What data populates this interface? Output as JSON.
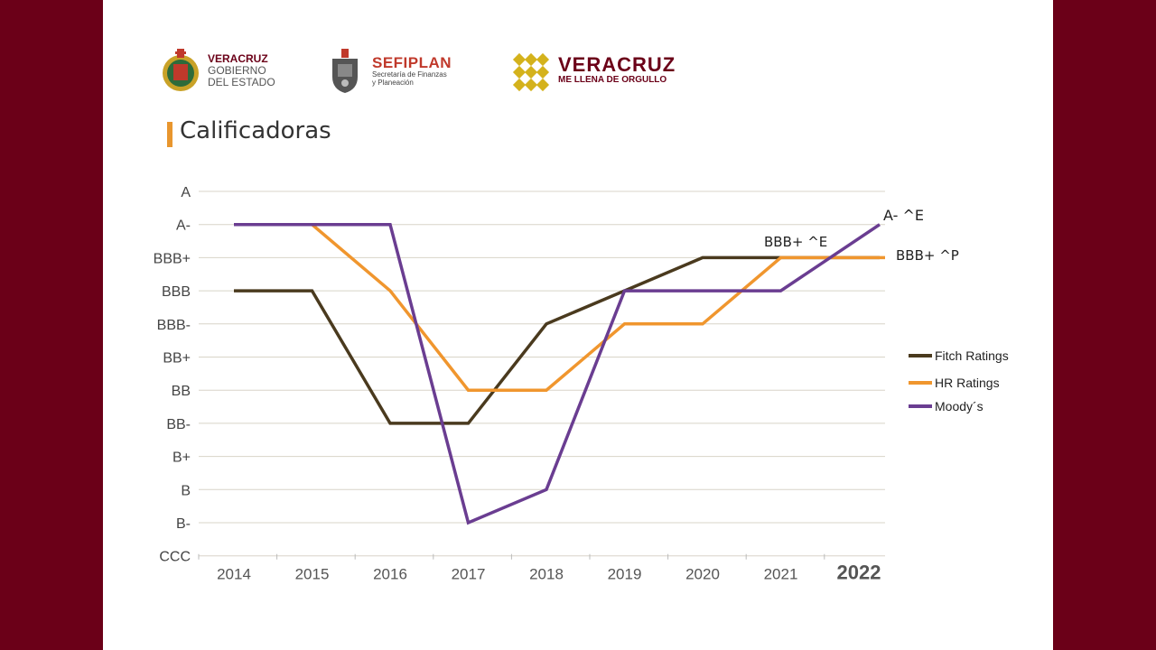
{
  "logos": {
    "gobierno": {
      "line1": "VERACRUZ",
      "line2": "GOBIERNO",
      "line3": "DEL ESTADO"
    },
    "sefiplan": {
      "name": "SEFIPLAN",
      "sub1": "Secretaría de Finanzas",
      "sub2": "y Planeación"
    },
    "veracruz": {
      "name": "VERACRUZ",
      "sub_a": "ME LLENA DE ",
      "sub_b": "ORGULLO"
    }
  },
  "title": "Calificadoras",
  "colors": {
    "background": "#6b0018",
    "accent": "#e8962e",
    "fitch": "#4a3a1e",
    "hr": "#f0962e",
    "moodys": "#6a3d91"
  },
  "chart_data": {
    "type": "line",
    "categories": [
      "2014",
      "2015",
      "2016",
      "2017",
      "2018",
      "2019",
      "2020",
      "2021",
      "2022"
    ],
    "y_categories": [
      "CCC",
      "B-",
      "B",
      "B+",
      "BB-",
      "BB",
      "BB+",
      "BBB-",
      "BBB",
      "BBB+",
      "A-",
      "A"
    ],
    "series": [
      {
        "name": "Fitch Ratings",
        "values": [
          "BBB",
          "BBB",
          "BB-",
          "BB-",
          "BBB-",
          "BBB",
          "BBB+",
          "BBB+",
          "BBB+"
        ]
      },
      {
        "name": "HR Ratings",
        "values": [
          "A-",
          "A-",
          "BBB",
          "BB",
          "BB",
          "BBB-",
          "BBB-",
          "BBB+",
          "BBB+"
        ]
      },
      {
        "name": "Moody´s",
        "values": [
          "A-",
          "A-",
          "A-",
          "B-",
          "B",
          "BBB",
          "BBB",
          "BBB",
          "A-"
        ]
      }
    ],
    "annotations": [
      "A- ^E",
      "BBB+ ^E",
      "BBB+ ^P"
    ],
    "highlight_category": "2022",
    "grid": true,
    "legend_position": "right"
  }
}
